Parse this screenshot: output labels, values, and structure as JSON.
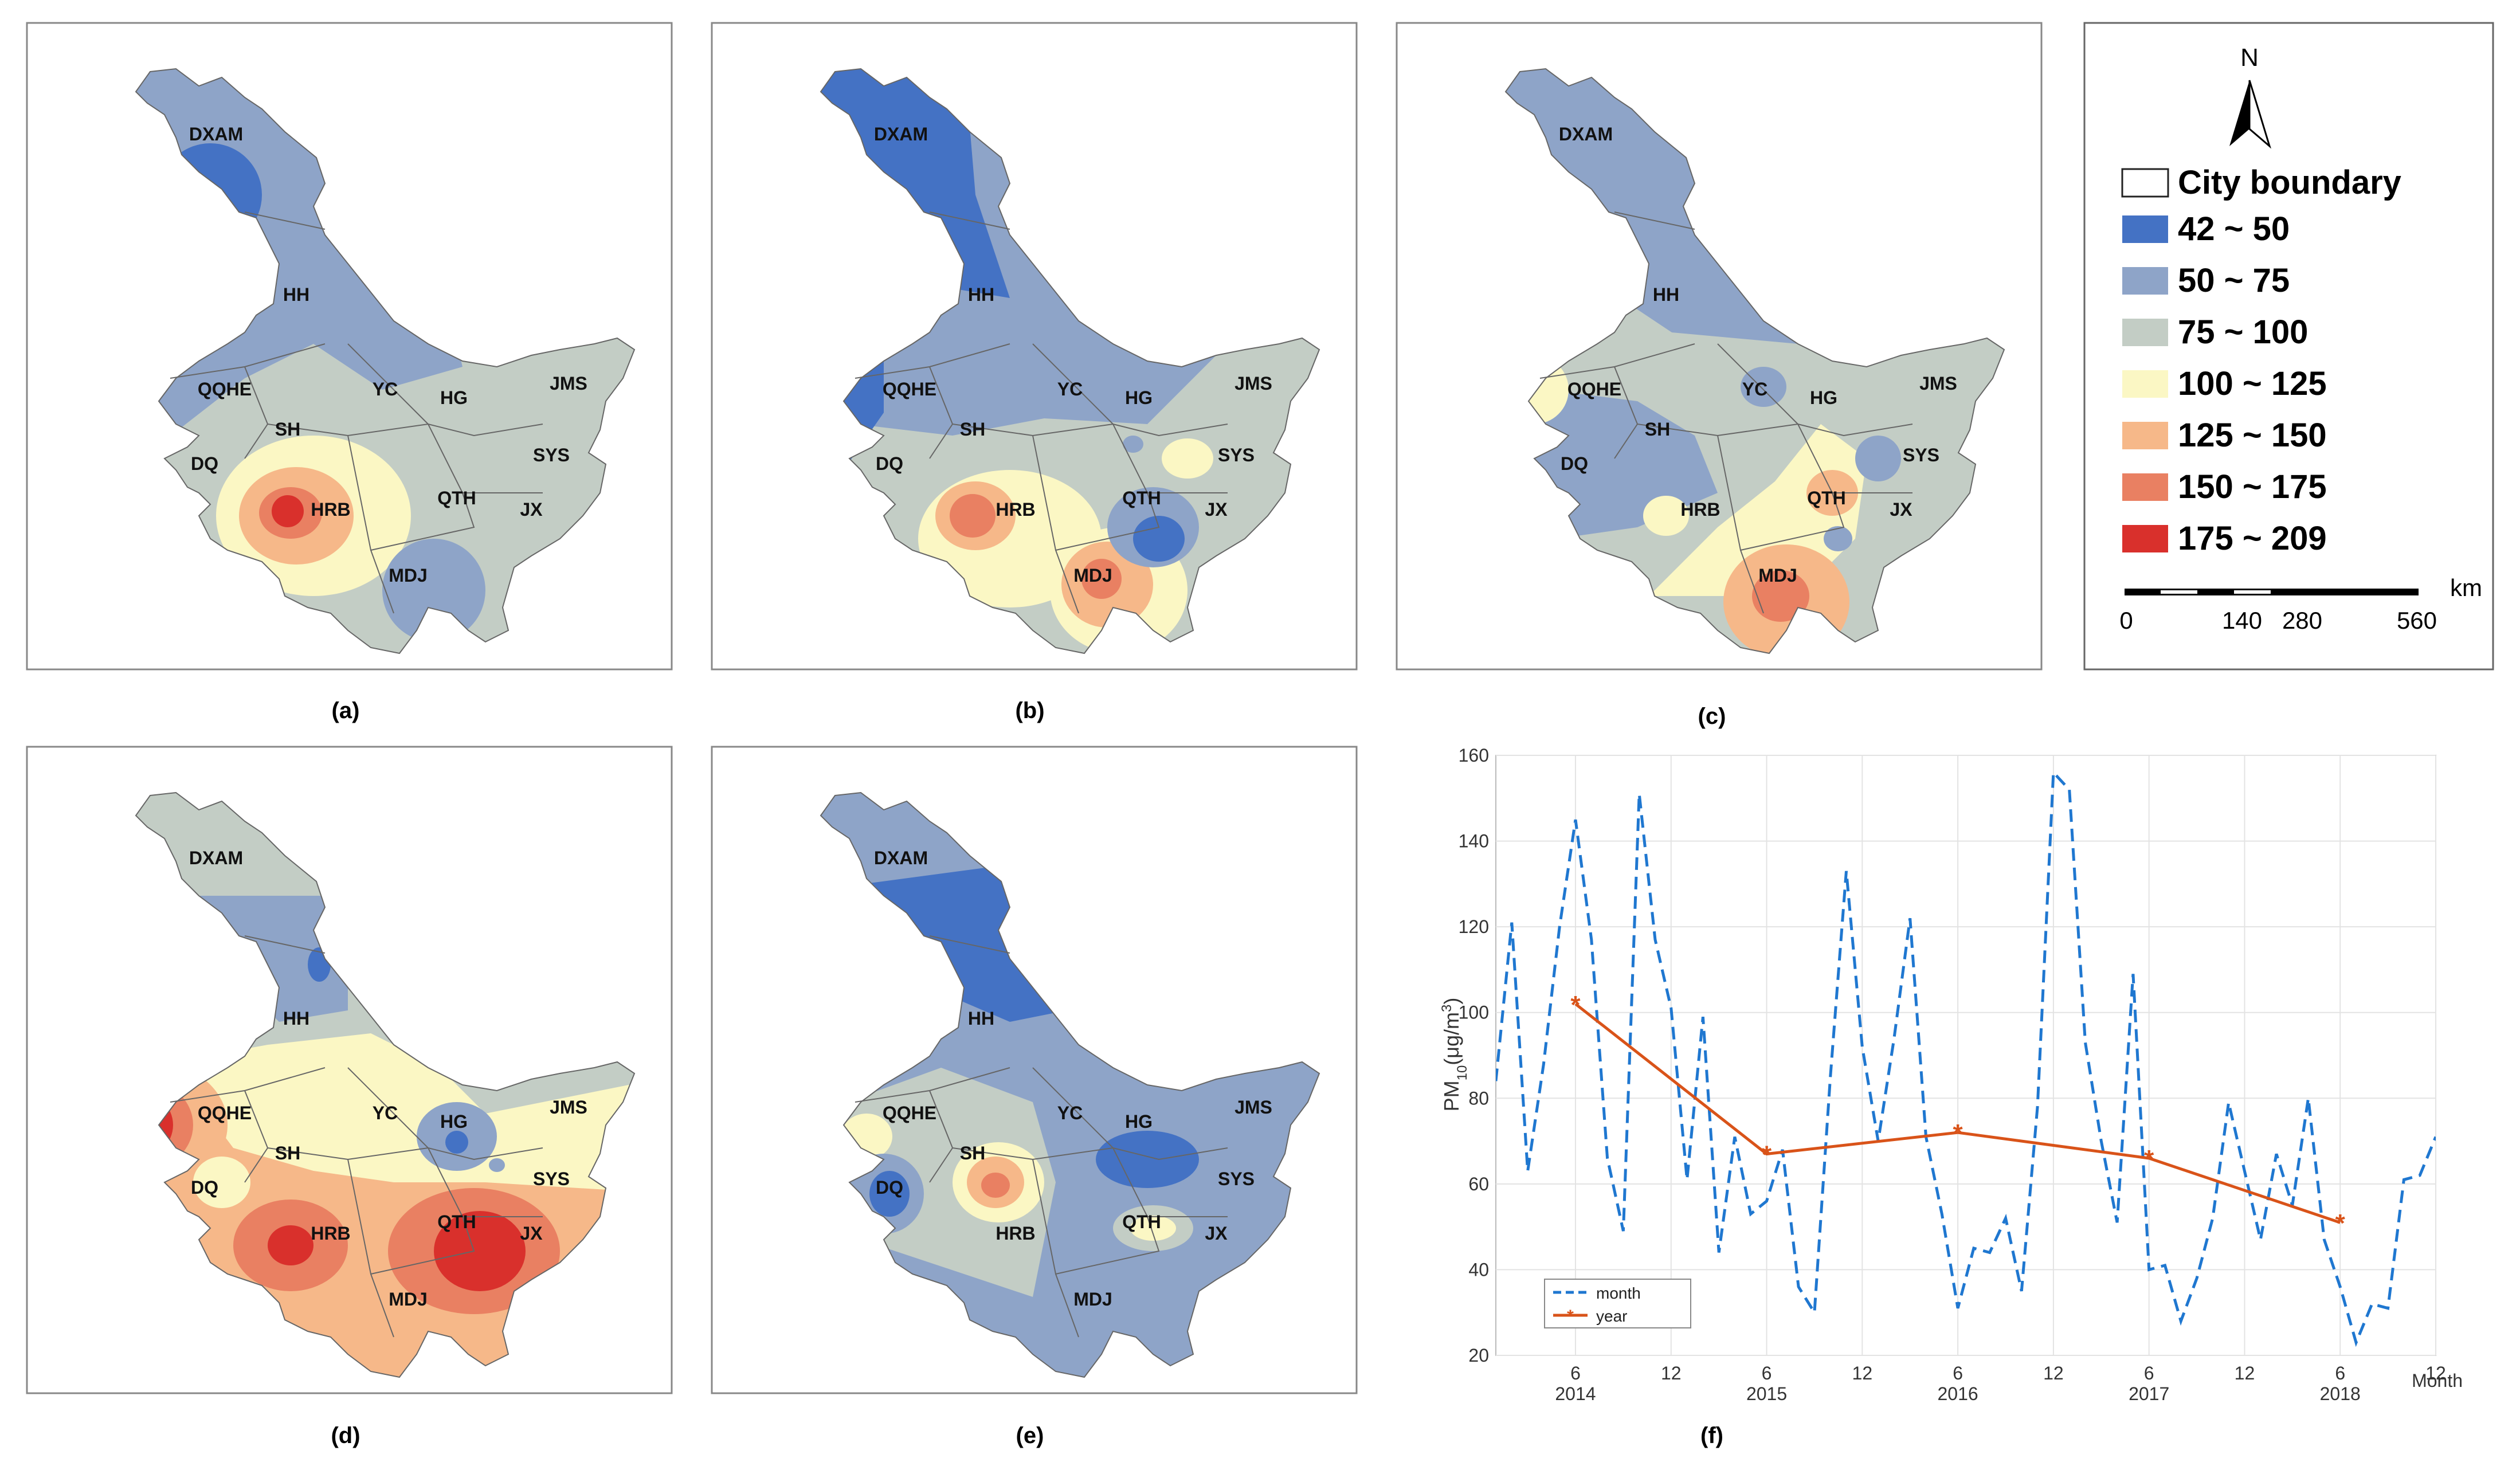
{
  "legend": {
    "north": "N",
    "boundary_label": "City boundary",
    "classes": [
      {
        "label": "42 ~ 50",
        "color": "#4472c4"
      },
      {
        "label": "50 ~ 75",
        "color": "#8ea4c8"
      },
      {
        "label": "75 ~ 100",
        "color": "#c3cdc5"
      },
      {
        "label": "100 ~ 125",
        "color": "#fbf7c4"
      },
      {
        "label": "125 ~ 150",
        "color": "#f6b889"
      },
      {
        "label": "150 ~ 175",
        "color": "#e98062"
      },
      {
        "label": "175 ~ 209",
        "color": "#d9302c"
      }
    ],
    "scale": {
      "unit": "km",
      "ticks": [
        "0",
        "140",
        "280",
        "560"
      ]
    }
  },
  "city_labels": [
    "DXAM",
    "HH",
    "QQHE",
    "YC",
    "HG",
    "JMS",
    "SH",
    "SYS",
    "DQ",
    "QTH",
    "HRB",
    "JX",
    "MDJ"
  ],
  "panels": [
    {
      "caption": "(a)"
    },
    {
      "caption": "(b)"
    },
    {
      "caption": "(c)"
    },
    {
      "caption": "(d)"
    },
    {
      "caption": "(e)"
    },
    {
      "caption": "(f)"
    }
  ],
  "chart_data": {
    "type": "line",
    "ylabel_base": "PM",
    "ylabel_sub": "10",
    "ylabel_mid": "(μg/m",
    "ylabel_sup": "3",
    "ylabel_end": ")",
    "xlabel": "Month",
    "ylim": [
      20,
      160
    ],
    "yticks": [
      "20",
      "40",
      "60",
      "80",
      "100",
      "120",
      "140",
      "160"
    ],
    "xlim": [
      1,
      60
    ],
    "xticks": [
      {
        "x": 6,
        "label": "6",
        "year": "2014"
      },
      {
        "x": 12,
        "label": "12",
        "year": ""
      },
      {
        "x": 18,
        "label": "6",
        "year": "2015"
      },
      {
        "x": 24,
        "label": "12",
        "year": ""
      },
      {
        "x": 30,
        "label": "6",
        "year": "2016"
      },
      {
        "x": 36,
        "label": "12",
        "year": ""
      },
      {
        "x": 42,
        "label": "6",
        "year": "2017"
      },
      {
        "x": 48,
        "label": "12",
        "year": ""
      },
      {
        "x": 54,
        "label": "6",
        "year": "2018"
      },
      {
        "x": 60,
        "label": "12",
        "year": ""
      }
    ],
    "series": [
      {
        "name": "month",
        "color": "#1f77d0",
        "style": "dashed",
        "x": [
          1,
          2,
          3,
          4,
          5,
          6,
          7,
          8,
          9,
          10,
          11,
          12,
          13,
          14,
          15,
          16,
          17,
          18,
          19,
          20,
          21,
          22,
          23,
          24,
          25,
          26,
          27,
          28,
          29,
          30,
          31,
          32,
          33,
          34,
          35,
          36,
          37,
          38,
          39,
          40,
          41,
          42,
          43,
          44,
          45,
          46,
          47,
          48,
          49,
          50,
          51,
          52,
          53,
          54,
          55,
          56,
          57,
          58,
          59,
          60
        ],
        "values": [
          84,
          121,
          63,
          88,
          120,
          145,
          117,
          66,
          49,
          151,
          117,
          101,
          61,
          99,
          44,
          71,
          53,
          56,
          68,
          36,
          30,
          85,
          133,
          92,
          70,
          94,
          122,
          71,
          53,
          31,
          45,
          44,
          52,
          35,
          78,
          156,
          152,
          93,
          70,
          51,
          109,
          40,
          41,
          28,
          38,
          52,
          79,
          63,
          47,
          67,
          55,
          80,
          47,
          36,
          23,
          32,
          31,
          61,
          62,
          71
        ]
      },
      {
        "name": "year",
        "color": "#d95319",
        "style": "solid-star",
        "x": [
          6,
          18,
          30,
          42,
          54
        ],
        "values": [
          102,
          67,
          72,
          66,
          51
        ]
      }
    ]
  }
}
